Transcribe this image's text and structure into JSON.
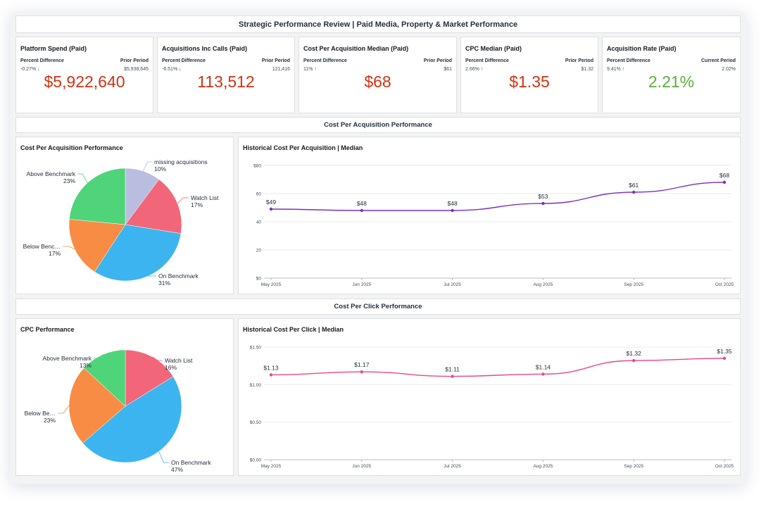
{
  "header": {
    "title": "Strategic Performance Review | Paid Media, Property & Market Performance"
  },
  "kpis": [
    {
      "title": "Platform Spend (Paid)",
      "left_label": "Percent Difference",
      "left_value": "-0.27% ↓",
      "right_label": "Prior Period",
      "right_value": "$5,938,645",
      "value": "$5,922,640",
      "value_color": "#d13212"
    },
    {
      "title": "Acquisitions Inc Calls (Paid)",
      "left_label": "Percent Difference",
      "left_value": "-6.51% ↓",
      "right_label": "Prior Period",
      "right_value": "121,416",
      "value": "113,512",
      "value_color": "#d13212"
    },
    {
      "title": "Cost Per Acquisition Median (Paid)",
      "left_label": "Percent Difference",
      "left_value": "11% ↑",
      "right_label": "Prior Period",
      "right_value": "$61",
      "value": "$68",
      "value_color": "#d13212"
    },
    {
      "title": "CPC Median (Paid)",
      "left_label": "Percent Difference",
      "left_value": "2.66% ↑",
      "right_label": "Prior Period",
      "right_value": "$1.32",
      "value": "$1.35",
      "value_color": "#d13212"
    },
    {
      "title": "Acquisition Rate (Paid)",
      "left_label": "Percent Difference",
      "left_value": "9.41% ↑",
      "right_label": "Current Period",
      "right_value": "2.02%",
      "value": "2.21%",
      "value_color": "#5aaf3c"
    }
  ],
  "sections": {
    "cpa": "Cost Per Acquisition Performance",
    "cpc": "Cost Per Click Performance"
  },
  "chart_data": [
    {
      "type": "pie",
      "title": "Cost Per Acquisition Performance",
      "labels": [
        "missing acquisitions",
        "Watch List",
        "On Benchmark",
        "Below Benc…",
        "Above Benchmark"
      ],
      "values": [
        10,
        17,
        31,
        17,
        23
      ],
      "value_labels": [
        "10%",
        "17%",
        "31%",
        "17%",
        "23%"
      ],
      "colors": [
        "#b9bde0",
        "#f2667a",
        "#3cb4ef",
        "#f88c44",
        "#4fd47a"
      ]
    },
    {
      "type": "line",
      "title": "Historical Cost Per Acquisition | Median",
      "x": [
        "May 2025",
        "Jun 2025",
        "Jul 2025",
        "Aug 2025",
        "Sep 2025",
        "Oct 2025"
      ],
      "y": [
        49,
        48,
        48,
        53,
        61,
        68
      ],
      "data_labels": [
        "$49",
        "$48",
        "$48",
        "$53",
        "$61",
        "$68"
      ],
      "y_ticks": [
        0,
        20,
        40,
        60,
        80
      ],
      "y_tick_labels": [
        "$0",
        "20",
        "40",
        "60",
        "$80"
      ],
      "ylim": [
        0,
        80
      ],
      "color": "#7b2fbd",
      "grid": true
    },
    {
      "type": "pie",
      "title": "CPC Performance",
      "labels": [
        "Watch List",
        "On Benchmark",
        "Below Be…",
        "Above Benchmark"
      ],
      "values": [
        16,
        47,
        23,
        13
      ],
      "value_labels": [
        "16%",
        "47%",
        "23%",
        "13%"
      ],
      "colors": [
        "#f2667a",
        "#3cb4ef",
        "#f88c44",
        "#4fd47a"
      ]
    },
    {
      "type": "line",
      "title": "Historical Cost Per Click | Median",
      "x": [
        "May 2025",
        "Jun 2025",
        "Jul 2025",
        "Aug 2025",
        "Sep 2025",
        "Oct 2025"
      ],
      "y": [
        1.13,
        1.17,
        1.11,
        1.14,
        1.32,
        1.35
      ],
      "data_labels": [
        "$1.13",
        "$1.17",
        "$1.11",
        "$1.14",
        "$1.32",
        "$1.35"
      ],
      "y_ticks": [
        0,
        0.5,
        1.0,
        1.5
      ],
      "y_tick_labels": [
        "$0.00",
        "$0.50",
        "$1.00",
        "$1.50"
      ],
      "ylim": [
        0,
        1.5
      ],
      "color": "#e8478f",
      "grid": true
    }
  ]
}
